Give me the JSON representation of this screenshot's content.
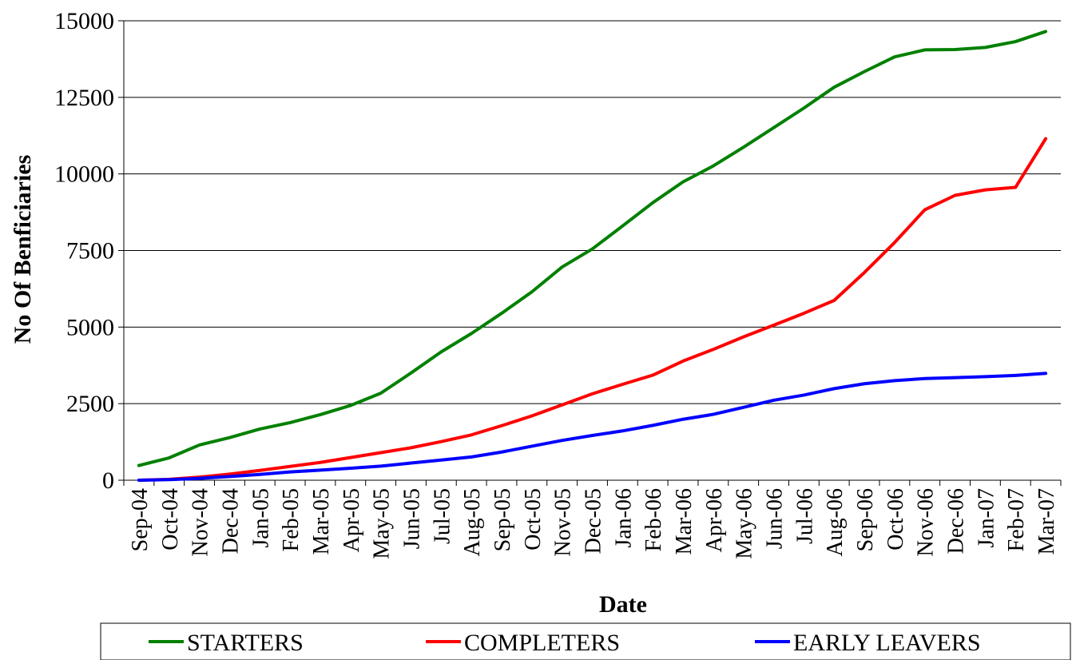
{
  "chart_data": {
    "type": "line",
    "xlabel": "Date",
    "ylabel": "No Of Benficiaries",
    "ylim": [
      0,
      15000
    ],
    "yticks": [
      "0",
      "2500",
      "5000",
      "7500",
      "10000",
      "12500",
      "15000"
    ],
    "grid": "horizontal",
    "legend_position": "bottom",
    "categories": [
      "Sep-04",
      "Oct-04",
      "Nov-04",
      "Dec-04",
      "Jan-05",
      "Feb-05",
      "Mar-05",
      "Apr-05",
      "May-05",
      "Jun-05",
      "Jul-05",
      "Aug-05",
      "Sep-05",
      "Oct-05",
      "Nov-05",
      "Dec-05",
      "Jan-06",
      "Feb-06",
      "Mar-06",
      "Apr-06",
      "May-06",
      "Jun-06",
      "Jul-06",
      "Aug-06",
      "Sep-06",
      "Oct-06",
      "Nov-06",
      "Dec-06",
      "Jan-07",
      "Feb-07",
      "Mar-07"
    ],
    "series": [
      {
        "name": "STARTERS",
        "color": "#008000",
        "values": [
          480,
          730,
          1150,
          1390,
          1670,
          1880,
          2140,
          2440,
          2840,
          3500,
          4190,
          4790,
          5450,
          6150,
          6960,
          7550,
          8300,
          9060,
          9740,
          10260,
          10870,
          11510,
          12150,
          12830,
          13340,
          13820,
          14050,
          14060,
          14130,
          14320,
          14650
        ]
      },
      {
        "name": "COMPLETERS",
        "color": "#ff0000",
        "values": [
          0,
          30,
          100,
          200,
          320,
          450,
          580,
          740,
          900,
          1060,
          1260,
          1480,
          1780,
          2100,
          2460,
          2820,
          3130,
          3430,
          3890,
          4270,
          4680,
          5060,
          5450,
          5870,
          6780,
          7760,
          8830,
          9300,
          9480,
          9560,
          11150
        ]
      },
      {
        "name": "EARLY LEAVERS",
        "color": "#0000ff",
        "values": [
          0,
          20,
          60,
          120,
          190,
          270,
          330,
          390,
          460,
          560,
          660,
          760,
          920,
          1110,
          1300,
          1460,
          1610,
          1790,
          1990,
          2150,
          2380,
          2610,
          2780,
          2990,
          3150,
          3250,
          3320,
          3350,
          3380,
          3420,
          3490
        ]
      }
    ]
  }
}
